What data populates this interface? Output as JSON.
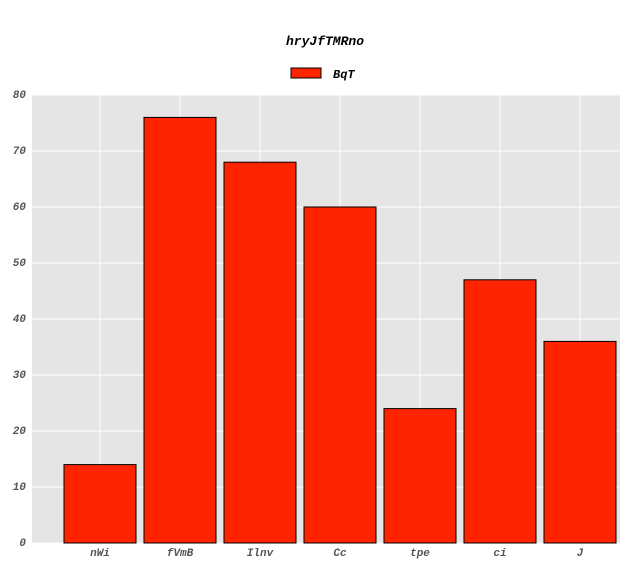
{
  "chart_data": {
    "type": "bar",
    "title": "hryJfTMRno",
    "xlabel": "",
    "ylabel": "",
    "categories": [
      "nWi",
      "fVmB",
      "Ilnv",
      "Cc",
      "tpe",
      "ci",
      "J"
    ],
    "series": [
      {
        "name": "BqT",
        "values": [
          14,
          76,
          68,
          60,
          24,
          47,
          36
        ]
      }
    ],
    "ylim": [
      0,
      80
    ],
    "yticks": [
      "0",
      "10",
      "20",
      "30",
      "40",
      "50",
      "60",
      "70",
      "80"
    ],
    "grid": true,
    "legend": "top-center",
    "colors": {
      "bar": "#ff2400",
      "bar_edge": "#000000",
      "plot_bg": "#e5e5e5",
      "grid": "#ffffff",
      "tick_text": "#555555"
    }
  }
}
